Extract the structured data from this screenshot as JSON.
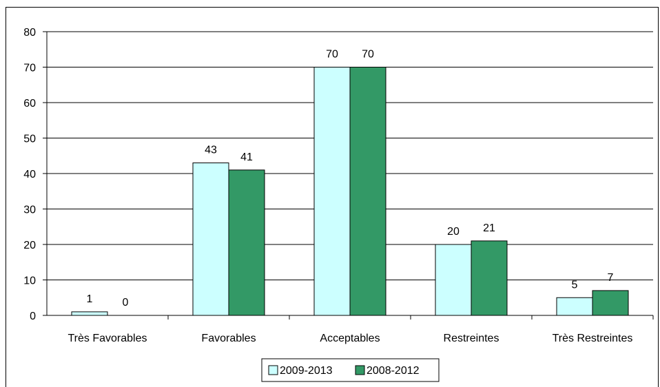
{
  "colors": {
    "s1": "#ccffff",
    "s2": "#339966",
    "axis": "#000000"
  },
  "chart_data": {
    "type": "bar",
    "title": "",
    "xlabel": "",
    "ylabel": "",
    "ylim": [
      0,
      80
    ],
    "yticks": [
      0,
      10,
      20,
      30,
      40,
      50,
      60,
      70,
      80
    ],
    "grid": true,
    "legend_position": "bottom",
    "categories": [
      "Très Favorables",
      "Favorables",
      "Acceptables",
      "Restreintes",
      "Très Restreintes"
    ],
    "series": [
      {
        "name": "2009-2013",
        "values": [
          1,
          43,
          70,
          20,
          5
        ]
      },
      {
        "name": "2008-2012",
        "values": [
          0,
          41,
          70,
          21,
          7
        ]
      }
    ]
  }
}
